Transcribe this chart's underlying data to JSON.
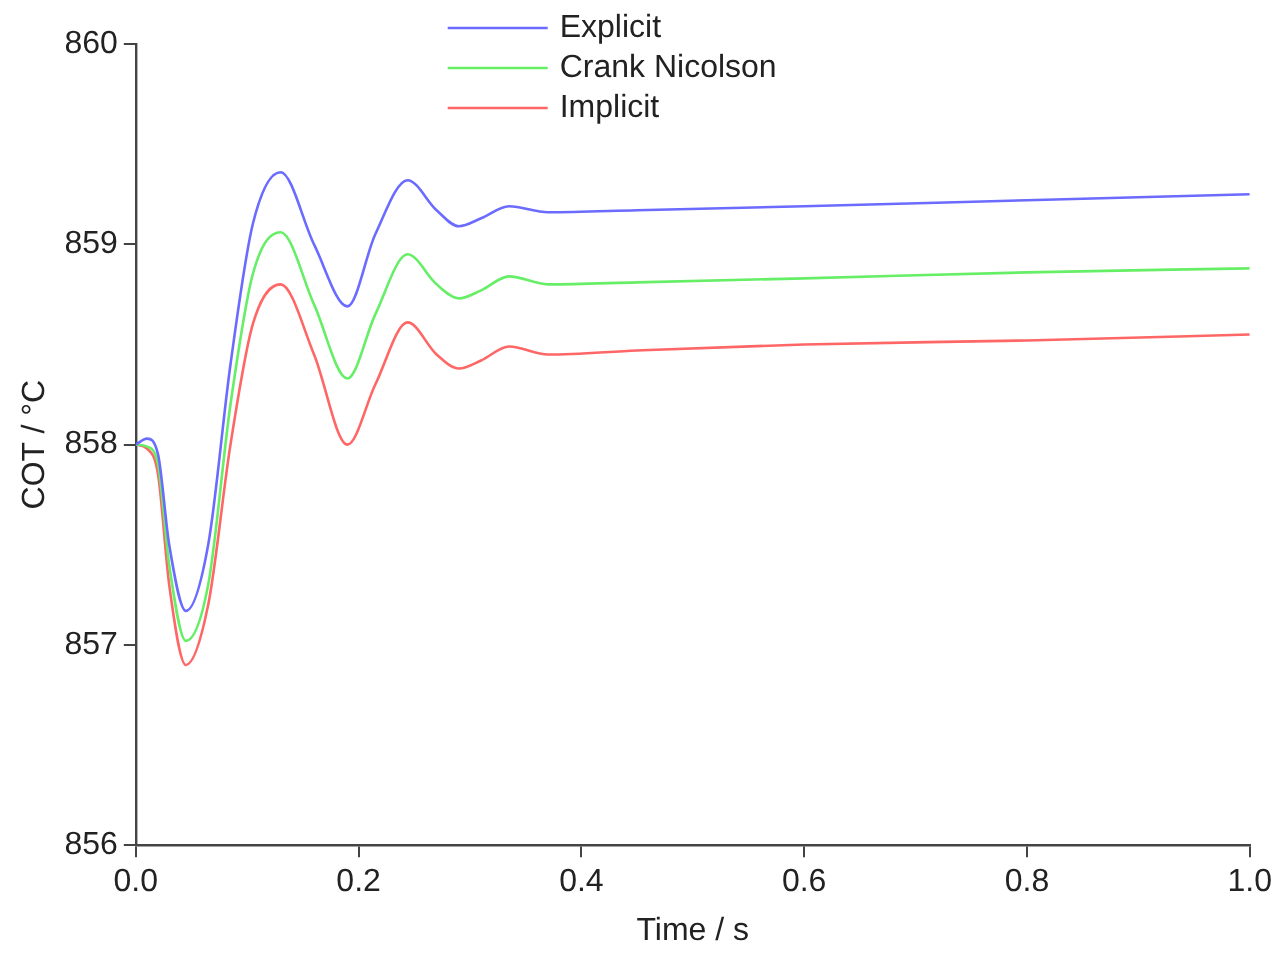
{
  "chart_data": {
    "type": "line",
    "xlabel": "Time / s",
    "ylabel": "COT / °C",
    "xlim": [
      0,
      1
    ],
    "xticks": [
      {
        "value": 0,
        "label": "0.0"
      },
      0.2,
      0.4,
      0.6,
      0.8,
      {
        "value": 1,
        "label": "1.0"
      }
    ],
    "ylim": [
      856,
      860
    ],
    "yticks": [
      856,
      857,
      858,
      859,
      860
    ],
    "grid": false,
    "legend": "top",
    "marker": "none",
    "line_style": "solid",
    "x": [
      0,
      0.01,
      0.02,
      0.03,
      0.045,
      0.065,
      0.085,
      0.105,
      0.13,
      0.16,
      0.19,
      0.215,
      0.244,
      0.27,
      0.29,
      0.31,
      0.335,
      0.37,
      0.45,
      0.6,
      0.8,
      1.0
    ],
    "series": [
      {
        "name": "Explicit",
        "color": "#6b6bff",
        "values": [
          858,
          858.03,
          857.95,
          857.5,
          857.17,
          857.5,
          858.4,
          859.1,
          859.36,
          859.0,
          858.69,
          859.05,
          859.32,
          859.17,
          859.09,
          859.13,
          859.19,
          859.16,
          859.17,
          859.19,
          859.22,
          859.25
        ]
      },
      {
        "name": "Crank Nicolson",
        "color": "#66ee66",
        "values": [
          858,
          857.99,
          857.9,
          857.4,
          857.02,
          857.3,
          858.2,
          858.85,
          859.06,
          858.7,
          858.33,
          858.65,
          858.95,
          858.8,
          858.73,
          858.77,
          858.84,
          858.8,
          858.81,
          858.83,
          858.86,
          858.88
        ]
      },
      {
        "name": "Implicit",
        "color": "#ff6666",
        "values": [
          858,
          857.98,
          857.85,
          857.3,
          856.9,
          857.2,
          858.0,
          858.6,
          858.8,
          858.45,
          858.0,
          858.3,
          858.61,
          858.45,
          858.38,
          858.42,
          858.49,
          858.45,
          858.47,
          858.5,
          858.52,
          858.55
        ]
      }
    ]
  }
}
